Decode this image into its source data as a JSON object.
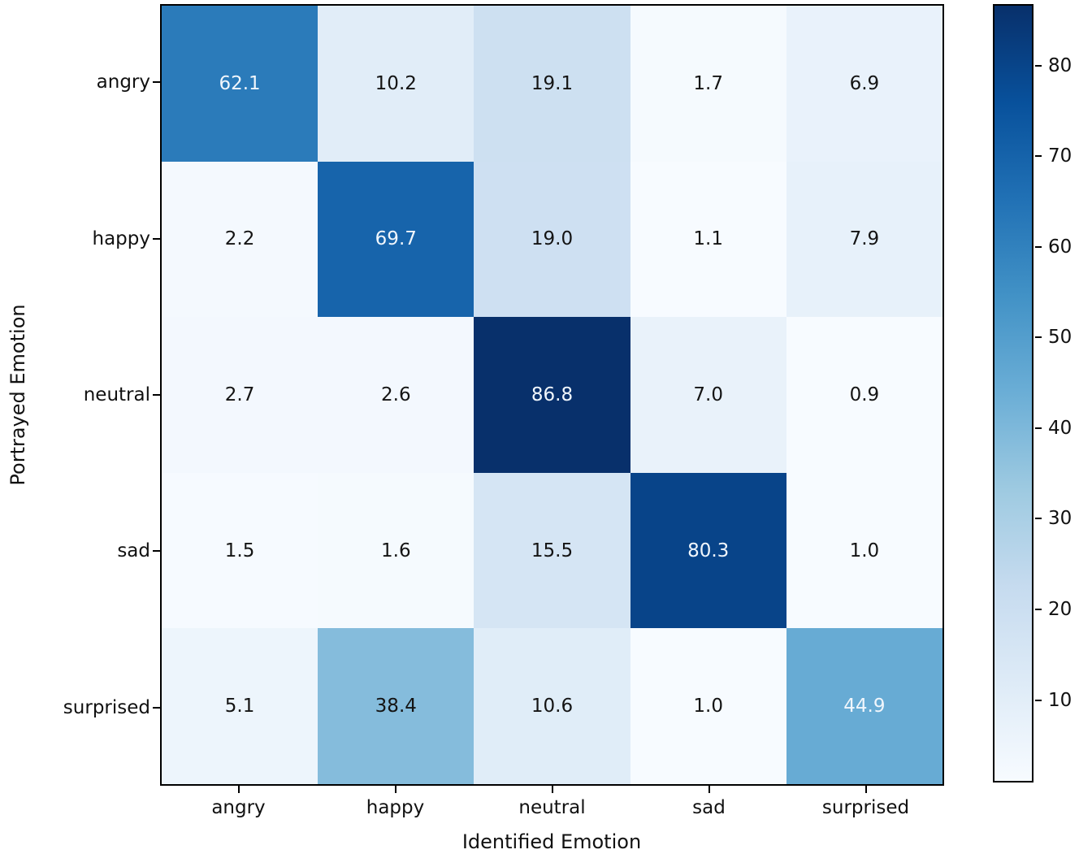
{
  "chart_data": {
    "type": "heatmap",
    "title": "",
    "xlabel": "Identified Emotion",
    "ylabel": "Portrayed Emotion",
    "categories_x": [
      "angry",
      "happy",
      "neutral",
      "sad",
      "surprised"
    ],
    "categories_y": [
      "angry",
      "happy",
      "neutral",
      "sad",
      "surprised"
    ],
    "matrix": [
      [
        62.1,
        10.2,
        19.1,
        1.7,
        6.9
      ],
      [
        2.2,
        69.7,
        19.0,
        1.1,
        7.9
      ],
      [
        2.7,
        2.6,
        86.8,
        7.0,
        0.9
      ],
      [
        1.5,
        1.6,
        15.5,
        80.3,
        1.0
      ],
      [
        5.1,
        38.4,
        10.6,
        1.0,
        44.9
      ]
    ],
    "value_format_decimals": 1,
    "vmin": 0.9,
    "vmax": 86.8,
    "colormap": "Blues",
    "colormap_stops": [
      {
        "p": 0.0,
        "c": "#f7fbff"
      },
      {
        "p": 0.125,
        "c": "#deebf7"
      },
      {
        "p": 0.25,
        "c": "#c6dbef"
      },
      {
        "p": 0.375,
        "c": "#9ecae1"
      },
      {
        "p": 0.5,
        "c": "#6baed6"
      },
      {
        "p": 0.625,
        "c": "#4292c6"
      },
      {
        "p": 0.75,
        "c": "#2171b5"
      },
      {
        "p": 0.875,
        "c": "#08519c"
      },
      {
        "p": 1.0,
        "c": "#08306b"
      }
    ],
    "text_color_dark": "#141414",
    "text_color_light": "#f0f6fc",
    "text_light_threshold": 0.5,
    "colorbar_ticks": [
      "10",
      "20",
      "30",
      "40",
      "50",
      "60",
      "70",
      "80"
    ],
    "legend_position": "right-colorbar",
    "grid": false
  }
}
